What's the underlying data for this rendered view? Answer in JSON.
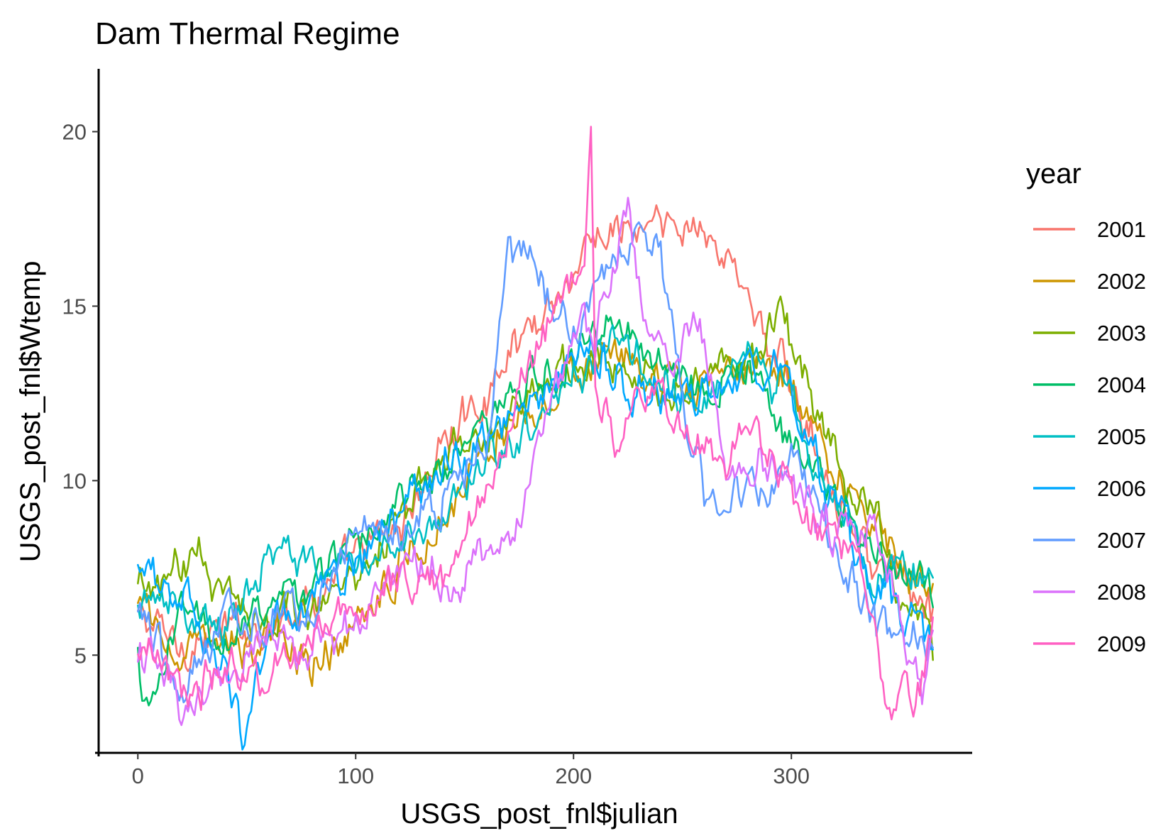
{
  "chart_data": {
    "type": "line",
    "title": "Dam Thermal Regime",
    "xlabel": "USGS_post_fnl$julian",
    "ylabel": "USGS_post_fnl$Wtemp",
    "xlim": [
      -18,
      383
    ],
    "ylim": [
      2.2,
      21.8
    ],
    "x_ticks": [
      0,
      100,
      200,
      300
    ],
    "y_ticks": [
      5,
      10,
      15,
      20
    ],
    "x_tick_labels": [
      "0",
      "100",
      "200",
      "300"
    ],
    "y_tick_labels": [
      "5",
      "10",
      "15",
      "20"
    ],
    "grid": false,
    "legend_title": "year",
    "legend_position": "right",
    "series": [
      {
        "name": "2001",
        "color": "#F8766D",
        "x": [
          0,
          20,
          40,
          60,
          80,
          100,
          120,
          140,
          160,
          180,
          200,
          210,
          220,
          240,
          250,
          260,
          270,
          280,
          290,
          300,
          320,
          340,
          365
        ],
        "y": [
          6.0,
          5.4,
          5.6,
          6.0,
          6.8,
          7.6,
          8.6,
          11.0,
          12.4,
          14.5,
          16.0,
          16.8,
          17.2,
          17.1,
          16.8,
          17.6,
          16.2,
          15.6,
          13.5,
          12.8,
          9.8,
          7.5,
          6.0
        ]
      },
      {
        "name": "2002",
        "color": "#CD9600",
        "x": [
          0,
          20,
          40,
          60,
          80,
          100,
          120,
          140,
          160,
          180,
          200,
          220,
          240,
          260,
          280,
          300,
          320,
          340,
          365
        ],
        "y": [
          6.4,
          4.8,
          5.2,
          5.6,
          4.8,
          6.0,
          7.6,
          9.2,
          11.0,
          12.2,
          13.0,
          13.4,
          12.6,
          12.4,
          13.2,
          13.0,
          10.4,
          8.8,
          6.6
        ]
      },
      {
        "name": "2003",
        "color": "#7CAE00",
        "x": [
          0,
          15,
          28,
          40,
          60,
          80,
          100,
          120,
          140,
          160,
          180,
          200,
          220,
          240,
          260,
          280,
          295,
          300,
          320,
          340,
          365
        ],
        "y": [
          6.8,
          7.0,
          8.2,
          6.6,
          6.2,
          6.4,
          7.4,
          9.0,
          10.4,
          11.2,
          12.6,
          13.6,
          13.4,
          12.6,
          12.8,
          13.6,
          14.6,
          13.8,
          10.6,
          8.4,
          5.0
        ]
      },
      {
        "name": "2004",
        "color": "#00BE67",
        "x": [
          0,
          5,
          20,
          40,
          60,
          80,
          100,
          120,
          140,
          160,
          180,
          200,
          210,
          220,
          240,
          260,
          280,
          300,
          320,
          340,
          360,
          365
        ],
        "y": [
          4.8,
          3.1,
          6.2,
          5.6,
          6.4,
          7.2,
          8.4,
          9.6,
          10.2,
          11.4,
          12.8,
          13.8,
          14.4,
          14.6,
          13.6,
          12.8,
          13.4,
          11.2,
          9.4,
          7.6,
          6.8,
          6.2
        ]
      },
      {
        "name": "2005",
        "color": "#00BFC4",
        "x": [
          0,
          20,
          40,
          65,
          80,
          100,
          120,
          140,
          160,
          180,
          200,
          220,
          240,
          260,
          280,
          300,
          320,
          340,
          365
        ],
        "y": [
          6.2,
          6.4,
          6.0,
          8.4,
          7.2,
          7.6,
          8.4,
          9.0,
          10.6,
          11.8,
          13.2,
          13.8,
          12.8,
          12.2,
          13.4,
          12.4,
          9.4,
          7.2,
          7.4
        ]
      },
      {
        "name": "2006",
        "color": "#00A9FF",
        "x": [
          0,
          20,
          40,
          48,
          60,
          80,
          100,
          120,
          140,
          160,
          180,
          200,
          220,
          240,
          260,
          280,
          300,
          320,
          340,
          365
        ],
        "y": [
          7.2,
          6.8,
          4.6,
          2.4,
          6.0,
          6.8,
          7.6,
          9.2,
          10.4,
          11.0,
          12.4,
          13.4,
          13.2,
          12.4,
          12.2,
          13.0,
          12.8,
          9.2,
          7.0,
          5.4
        ]
      },
      {
        "name": "2007",
        "color": "#619CFF",
        "x": [
          0,
          20,
          40,
          60,
          80,
          100,
          120,
          140,
          160,
          170,
          177,
          190,
          200,
          210,
          220,
          230,
          240,
          250,
          260,
          270,
          280,
          290,
          300,
          320,
          340,
          365
        ],
        "y": [
          6.6,
          3.6,
          5.8,
          6.2,
          6.4,
          8.6,
          8.8,
          9.6,
          11.2,
          16.2,
          16.8,
          14.8,
          14.2,
          15.4,
          16.6,
          17.0,
          16.4,
          12.2,
          9.6,
          9.4,
          9.6,
          9.2,
          10.6,
          8.0,
          5.8,
          5.0
        ]
      },
      {
        "name": "2008",
        "color": "#DB72FB",
        "x": [
          0,
          10,
          20,
          30,
          40,
          60,
          80,
          100,
          120,
          140,
          150,
          160,
          170,
          180,
          190,
          200,
          210,
          220,
          225,
          230,
          240,
          250,
          260,
          270,
          280,
          300,
          320,
          340,
          350,
          360,
          365
        ],
        "y": [
          5.0,
          4.6,
          3.0,
          3.2,
          4.4,
          5.4,
          5.2,
          6.0,
          7.2,
          7.6,
          7.4,
          8.0,
          8.2,
          10.2,
          12.8,
          14.2,
          14.4,
          16.4,
          17.6,
          15.8,
          13.4,
          14.2,
          14.0,
          10.2,
          10.8,
          9.8,
          8.4,
          8.8,
          6.2,
          3.6,
          5.6
        ]
      },
      {
        "name": "2009",
        "color": "#FF61C3",
        "x": [
          0,
          20,
          40,
          60,
          80,
          100,
          120,
          140,
          160,
          180,
          195,
          200,
          205,
          208,
          210,
          215,
          220,
          230,
          240,
          250,
          260,
          270,
          280,
          300,
          320,
          330,
          340,
          345,
          355,
          365
        ],
        "y": [
          5.4,
          3.8,
          4.4,
          4.6,
          5.6,
          6.2,
          7.2,
          7.0,
          9.6,
          13.6,
          15.6,
          16.0,
          16.8,
          20.9,
          13.2,
          11.8,
          10.8,
          12.2,
          12.4,
          11.2,
          11.0,
          10.4,
          11.6,
          9.6,
          8.2,
          7.6,
          5.6,
          3.4,
          3.6,
          5.8
        ]
      }
    ]
  }
}
